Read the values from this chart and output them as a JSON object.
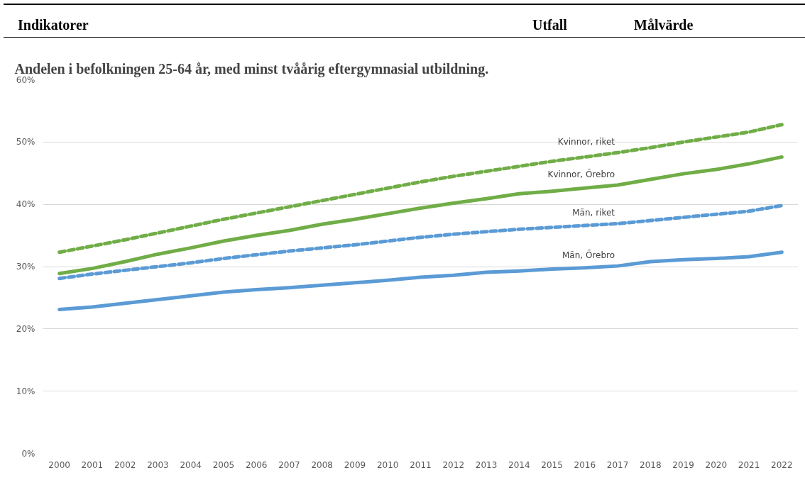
{
  "chart_data": {
    "type": "line",
    "title": "Andelen i befolkningen 25-64 år, med minst tvåårig eftergymnasial utbildning.",
    "annotations": [
      "Indikatorer",
      "Utfall",
      "Målvärde"
    ],
    "categories": [
      "2000",
      "2001",
      "2002",
      "2003",
      "2004",
      "2005",
      "2006",
      "2007",
      "2008",
      "2009",
      "2010",
      "2011",
      "2012",
      "2013",
      "2014",
      "2015",
      "2016",
      "2017",
      "2018",
      "2019",
      "2020",
      "2021",
      "2022"
    ],
    "ylim": [
      0,
      60
    ],
    "yticks": [
      {
        "value": 0,
        "label": "0%"
      },
      {
        "value": 10,
        "label": "10%"
      },
      {
        "value": 20,
        "label": "20%"
      },
      {
        "value": 30,
        "label": "30%"
      },
      {
        "value": 40,
        "label": "40%"
      },
      {
        "value": 50,
        "label": "50%"
      },
      {
        "value": 60,
        "label": "60%"
      }
    ],
    "grid": "y",
    "legend": false,
    "marker": "none",
    "series": [
      {
        "name": "Kvinnor, riket",
        "color": "#70ad47",
        "line_style": "dashed",
        "values": [
          32.3,
          33.3,
          34.3,
          35.4,
          36.5,
          37.6,
          38.6,
          39.6,
          40.6,
          41.6,
          42.6,
          43.6,
          44.5,
          45.3,
          46.1,
          46.9,
          47.6,
          48.3,
          49.1,
          50.0,
          50.8,
          51.6,
          52.8
        ]
      },
      {
        "name": "Kvinnor, Örebro",
        "color": "#70ad47",
        "line_style": "solid",
        "values": [
          28.9,
          29.7,
          30.8,
          32.0,
          33.0,
          34.1,
          35.0,
          35.8,
          36.8,
          37.6,
          38.5,
          39.4,
          40.2,
          40.9,
          41.7,
          42.1,
          42.6,
          43.1,
          44.0,
          44.9,
          45.6,
          46.5,
          47.6
        ]
      },
      {
        "name": "Män, riket",
        "color": "#5b9bd5",
        "line_style": "dashed",
        "values": [
          28.1,
          28.8,
          29.4,
          30.0,
          30.6,
          31.3,
          31.9,
          32.5,
          33.0,
          33.5,
          34.1,
          34.7,
          35.2,
          35.6,
          36.0,
          36.3,
          36.6,
          36.9,
          37.4,
          37.9,
          38.4,
          38.9,
          39.8
        ]
      },
      {
        "name": "Män, Örebro",
        "color": "#5b9bd5",
        "line_style": "solid",
        "values": [
          23.1,
          23.5,
          24.1,
          24.7,
          25.3,
          25.9,
          26.3,
          26.6,
          27.0,
          27.4,
          27.8,
          28.3,
          28.6,
          29.1,
          29.3,
          29.6,
          29.8,
          30.1,
          30.8,
          31.1,
          31.3,
          31.6,
          32.3
        ]
      }
    ]
  }
}
